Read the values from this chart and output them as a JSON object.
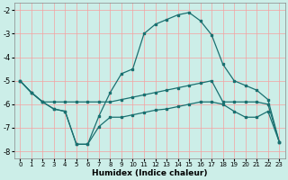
{
  "xlabel": "Humidex (Indice chaleur)",
  "background_color": "#cceee8",
  "grid_color": "#f5a0a0",
  "line_color": "#1a7070",
  "xlim": [
    -0.5,
    23.5
  ],
  "ylim": [
    -8.3,
    -1.7
  ],
  "xticks": [
    0,
    1,
    2,
    3,
    4,
    5,
    6,
    7,
    8,
    9,
    10,
    11,
    12,
    13,
    14,
    15,
    16,
    17,
    18,
    19,
    20,
    21,
    22,
    23
  ],
  "yticks": [
    -8,
    -7,
    -6,
    -5,
    -4,
    -3,
    -2
  ],
  "series_top_x": [
    0,
    1,
    2,
    3,
    4,
    5,
    6,
    7,
    8,
    9,
    10,
    11,
    12,
    13,
    14,
    15,
    16,
    17,
    18,
    19,
    20,
    21,
    22,
    23
  ],
  "series_top_y": [
    -5.0,
    -5.5,
    -5.9,
    -6.2,
    -6.3,
    -7.7,
    -7.7,
    -6.5,
    -5.5,
    -4.7,
    -4.5,
    -3.0,
    -2.6,
    -2.4,
    -2.2,
    -2.1,
    -2.45,
    -3.05,
    -4.3,
    -5.0,
    -5.2,
    -5.4,
    -5.8,
    -7.6
  ],
  "series_mid_x": [
    0,
    1,
    2,
    3,
    4,
    5,
    6,
    7,
    8,
    9,
    10,
    11,
    12,
    13,
    14,
    15,
    16,
    17,
    18,
    19,
    20,
    21,
    22,
    23
  ],
  "series_mid_y": [
    -5.0,
    -5.5,
    -5.9,
    -5.9,
    -5.9,
    -5.9,
    -5.9,
    -5.9,
    -5.9,
    -5.8,
    -5.7,
    -5.6,
    -5.5,
    -5.4,
    -5.3,
    -5.2,
    -5.1,
    -5.0,
    -5.9,
    -5.9,
    -5.9,
    -5.9,
    -6.0,
    -7.6
  ],
  "series_bot_x": [
    0,
    1,
    2,
    3,
    4,
    5,
    6,
    7,
    8,
    9,
    10,
    11,
    12,
    13,
    14,
    15,
    16,
    17,
    18,
    19,
    20,
    21,
    22,
    23
  ],
  "series_bot_y": [
    -5.0,
    -5.5,
    -5.9,
    -6.2,
    -6.3,
    -7.7,
    -7.7,
    -6.95,
    -6.55,
    -6.55,
    -6.45,
    -6.35,
    -6.25,
    -6.2,
    -6.1,
    -6.0,
    -5.9,
    -5.9,
    -6.0,
    -6.3,
    -6.55,
    -6.55,
    -6.3,
    -7.6
  ]
}
